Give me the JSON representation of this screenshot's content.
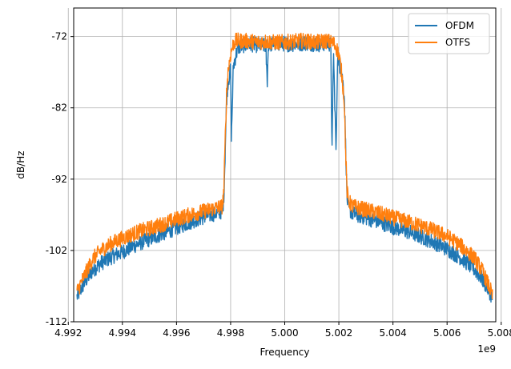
{
  "chart_data": {
    "type": "line",
    "title": "",
    "xlabel": "Frequency",
    "ylabel": "dB/Hz",
    "x_offset_label": "1e9",
    "xlim": [
      4.9922,
      5.0078
    ],
    "ylim": [
      -112,
      -68
    ],
    "xticks": [
      4.992,
      4.994,
      4.996,
      4.998,
      5.0,
      5.002,
      5.004,
      5.006,
      5.008
    ],
    "xtick_labels": [
      "4.992",
      "4.994",
      "4.996",
      "4.998",
      "5.000",
      "5.002",
      "5.004",
      "5.006",
      "5.008"
    ],
    "yticks": [
      -72,
      -82,
      -92,
      -102,
      -112
    ],
    "ytick_labels": [
      "-72",
      "-82",
      "-92",
      "-102",
      "-112"
    ],
    "grid": true,
    "legend_position": "top-right",
    "series": [
      {
        "name": "OFDM",
        "color": "#1f77b4",
        "points": [
          [
            4.99232,
            -108.5
          ],
          [
            4.9926,
            -106.5
          ],
          [
            4.9929,
            -104.8
          ],
          [
            4.9932,
            -103.8
          ],
          [
            4.9936,
            -102.9
          ],
          [
            4.994,
            -102.2
          ],
          [
            4.9945,
            -101.2
          ],
          [
            4.995,
            -100.4
          ],
          [
            4.9955,
            -99.6
          ],
          [
            4.996,
            -98.8
          ],
          [
            4.9965,
            -98.0
          ],
          [
            4.997,
            -97.3
          ],
          [
            4.9975,
            -96.7
          ],
          [
            4.9977,
            -96.5
          ],
          [
            4.99775,
            -94.5
          ],
          [
            4.9978,
            -88
          ],
          [
            4.99785,
            -81
          ],
          [
            4.9979,
            -78.5
          ],
          [
            4.998,
            -76.6
          ],
          [
            4.99803,
            -86.5
          ],
          [
            4.99808,
            -79
          ],
          [
            4.9981,
            -76.2
          ],
          [
            4.9982,
            -74.5
          ],
          [
            4.9983,
            -73.5
          ],
          [
            4.9985,
            -73.2
          ],
          [
            4.9988,
            -73.1
          ],
          [
            4.999,
            -73.2
          ],
          [
            4.9993,
            -73.3
          ],
          [
            4.99935,
            -78.5
          ],
          [
            4.9994,
            -73.1
          ],
          [
            4.9997,
            -73.0
          ],
          [
            5.0,
            -73.0
          ],
          [
            5.0002,
            -73.1
          ],
          [
            5.0005,
            -73.0
          ],
          [
            5.0008,
            -72.9
          ],
          [
            5.001,
            -73.0
          ],
          [
            5.0013,
            -73.1
          ],
          [
            5.0016,
            -72.9
          ],
          [
            5.0017,
            -73.2
          ],
          [
            5.00175,
            -88.0
          ],
          [
            5.0018,
            -74.0
          ],
          [
            5.0019,
            -88.5
          ],
          [
            5.00195,
            -75.0
          ],
          [
            5.002,
            -75.5
          ],
          [
            5.0021,
            -77.0
          ],
          [
            5.0022,
            -80.0
          ],
          [
            5.00225,
            -87.0
          ],
          [
            5.0023,
            -94.5
          ],
          [
            5.00235,
            -96.0
          ],
          [
            5.0025,
            -96.8
          ],
          [
            5.003,
            -97.4
          ],
          [
            5.0035,
            -98.0
          ],
          [
            5.004,
            -98.7
          ],
          [
            5.0045,
            -99.3
          ],
          [
            5.005,
            -100.0
          ],
          [
            5.0055,
            -100.8
          ],
          [
            5.006,
            -101.8
          ],
          [
            5.0065,
            -103.0
          ],
          [
            5.007,
            -104.6
          ],
          [
            5.0073,
            -106.0
          ],
          [
            5.0076,
            -108.0
          ],
          [
            5.00768,
            -108.8
          ]
        ]
      },
      {
        "name": "OTFS",
        "color": "#ff7f0e",
        "points": [
          [
            4.99232,
            -107.8
          ],
          [
            4.9926,
            -105.5
          ],
          [
            4.9929,
            -103.2
          ],
          [
            4.9932,
            -102.0
          ],
          [
            4.9936,
            -101.0
          ],
          [
            4.994,
            -100.3
          ],
          [
            4.9945,
            -99.5
          ],
          [
            4.995,
            -98.9
          ],
          [
            4.9955,
            -98.3
          ],
          [
            4.996,
            -97.6
          ],
          [
            4.9965,
            -97.0
          ],
          [
            4.997,
            -96.5
          ],
          [
            4.9975,
            -96.0
          ],
          [
            4.9977,
            -95.8
          ],
          [
            4.99775,
            -93.5
          ],
          [
            4.9978,
            -86.5
          ],
          [
            4.99785,
            -80.0
          ],
          [
            4.9979,
            -77.0
          ],
          [
            4.998,
            -74.5
          ],
          [
            4.9981,
            -73.0
          ],
          [
            4.9982,
            -72.6
          ],
          [
            4.9985,
            -72.6
          ],
          [
            4.9988,
            -72.7
          ],
          [
            4.999,
            -72.8
          ],
          [
            4.9993,
            -72.7
          ],
          [
            4.9996,
            -72.8
          ],
          [
            5.0,
            -72.8
          ],
          [
            5.0003,
            -72.7
          ],
          [
            5.0006,
            -72.6
          ],
          [
            5.0009,
            -72.7
          ],
          [
            5.0012,
            -72.8
          ],
          [
            5.0015,
            -72.6
          ],
          [
            5.0018,
            -72.9
          ],
          [
            5.0019,
            -73.5
          ],
          [
            5.002,
            -74.5
          ],
          [
            5.0021,
            -77.0
          ],
          [
            5.0022,
            -81.0
          ],
          [
            5.00225,
            -88.0
          ],
          [
            5.0023,
            -93.5
          ],
          [
            5.00235,
            -95.0
          ],
          [
            5.0025,
            -95.8
          ],
          [
            5.003,
            -96.3
          ],
          [
            5.0035,
            -96.8
          ],
          [
            5.004,
            -97.4
          ],
          [
            5.0045,
            -97.9
          ],
          [
            5.005,
            -98.5
          ],
          [
            5.0055,
            -99.2
          ],
          [
            5.006,
            -100.0
          ],
          [
            5.0065,
            -101.3
          ],
          [
            5.007,
            -103.0
          ],
          [
            5.0073,
            -104.8
          ],
          [
            5.0076,
            -107.5
          ],
          [
            5.00768,
            -108.5
          ]
        ]
      }
    ]
  }
}
